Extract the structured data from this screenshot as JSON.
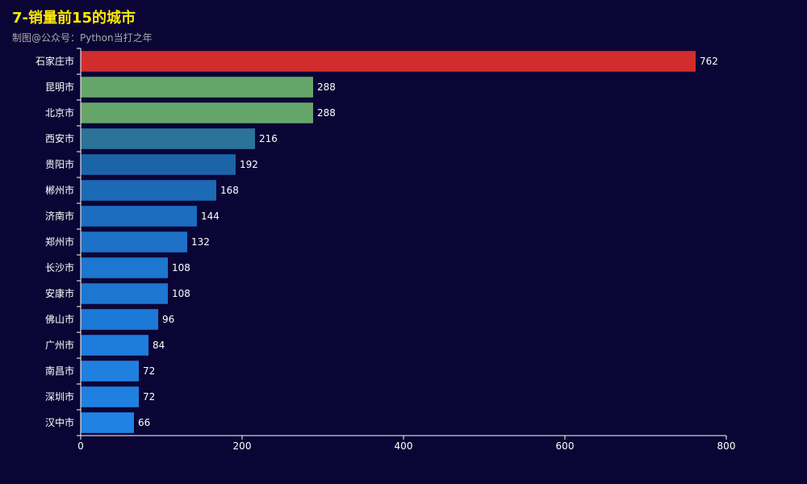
{
  "chart_data": {
    "type": "bar",
    "orientation": "horizontal",
    "title": "7-销量前15的城市",
    "subtitle": "制图@公众号：Python当打之年",
    "categories": [
      "石家庄市",
      "昆明市",
      "北京市",
      "西安市",
      "贵阳市",
      "郴州市",
      "济南市",
      "郑州市",
      "长沙市",
      "安康市",
      "佛山市",
      "广州市",
      "南昌市",
      "深圳市",
      "汉中市"
    ],
    "values": [
      762,
      288,
      288,
      216,
      192,
      168,
      144,
      132,
      108,
      108,
      96,
      84,
      72,
      72,
      66
    ],
    "bar_colors": [
      "#d22d2d",
      "#66a56a",
      "#66a56a",
      "#2b7399",
      "#1c64a8",
      "#1c69b5",
      "#1c6dbf",
      "#1d71c7",
      "#1d76cf",
      "#1d76cf",
      "#1d79d6",
      "#1e7cdc",
      "#1f80e0",
      "#1f80e0",
      "#2082e2"
    ],
    "xlim": [
      0,
      800
    ],
    "xticks": [
      "0",
      "200",
      "400",
      "600",
      "800"
    ],
    "xtick_values": [
      0,
      200,
      400,
      600,
      800
    ],
    "grid": false,
    "show_value_labels": true
  },
  "colors": {
    "background": "#0b0535",
    "title": "#ffea00",
    "subtitle": "#aaaaaa",
    "axis": "#ffffff",
    "text": "#ffffff"
  }
}
